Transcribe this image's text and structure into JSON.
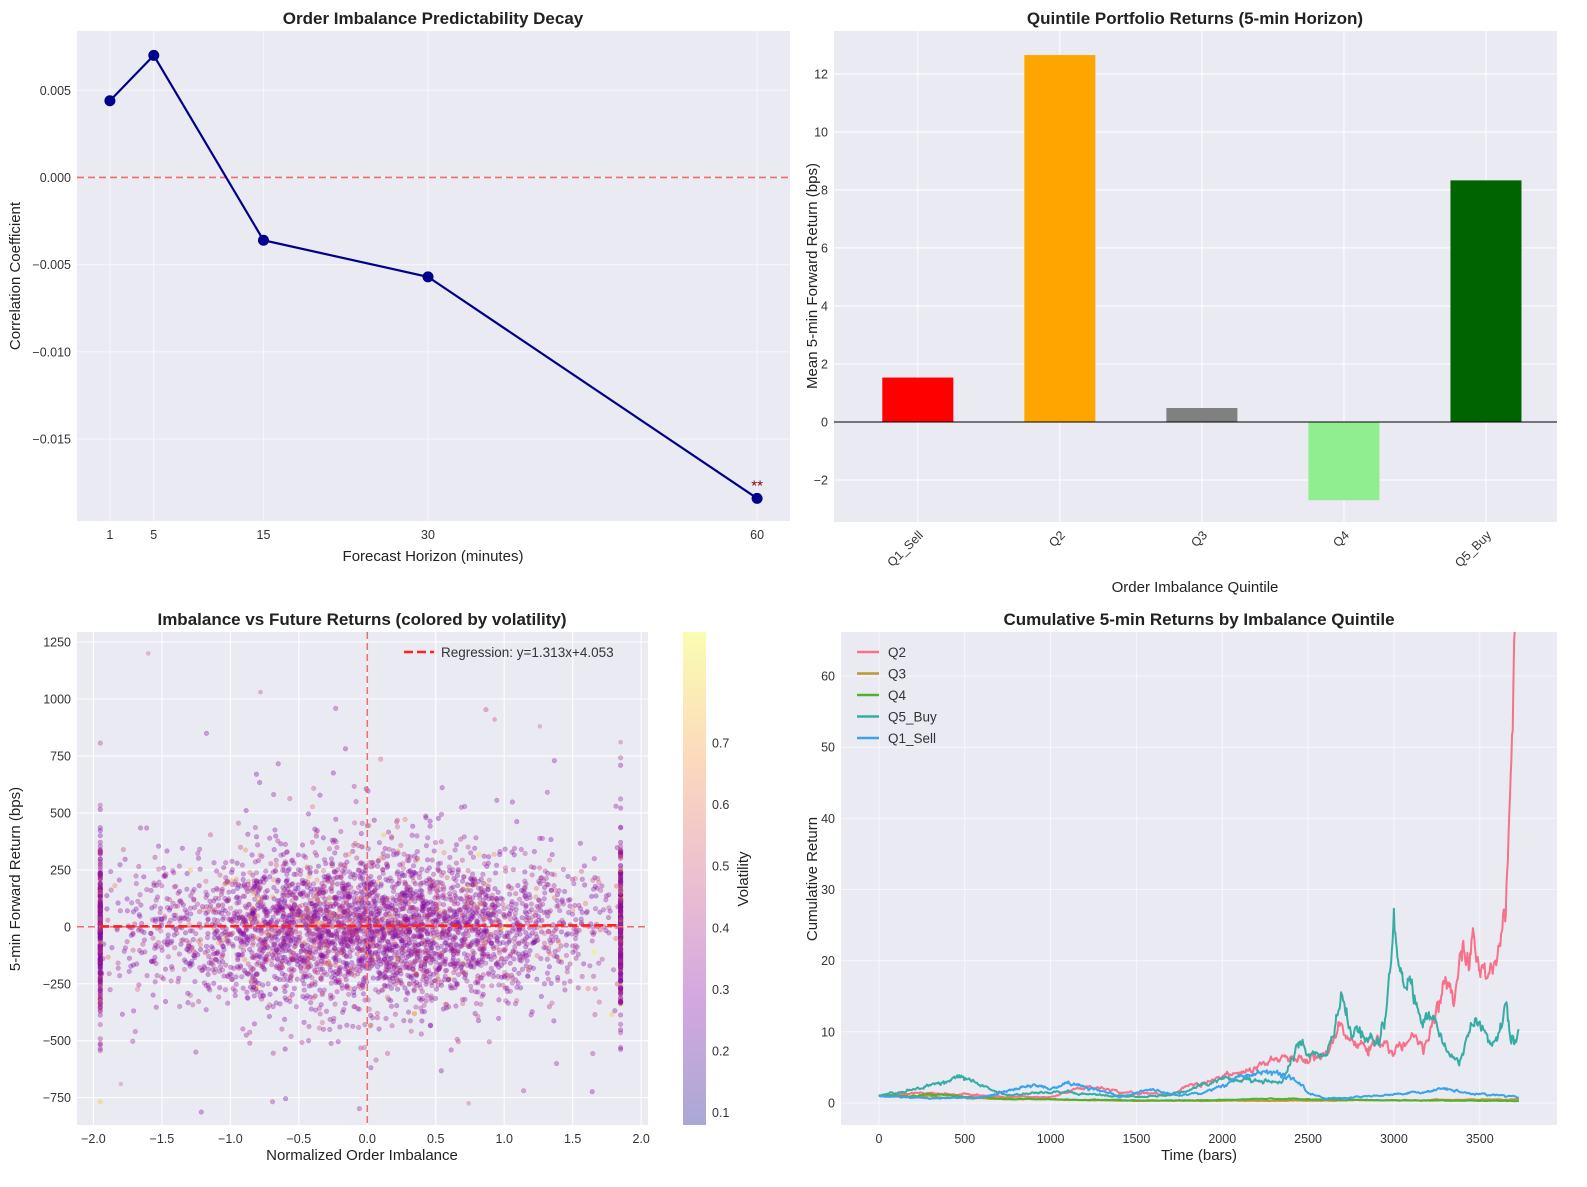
{
  "chart_data": [
    {
      "type": "line",
      "title": "Order Imbalance Predictability Decay",
      "xlabel": "Forecast Horizon (minutes)",
      "ylabel": "Correlation Coefficient",
      "x": [
        1,
        5,
        15,
        30,
        60
      ],
      "y": [
        0.0044,
        0.007,
        -0.0036,
        -0.0057,
        -0.0184
      ],
      "xlim": [
        -2,
        63
      ],
      "ylim": [
        -0.0197,
        0.0084
      ],
      "xticks": [
        1,
        5,
        15,
        30,
        60
      ],
      "xtick_labels": [
        "1",
        "5",
        "15",
        "30",
        "60"
      ],
      "yticks": [
        -0.015,
        -0.01,
        -0.005,
        0.0,
        0.005
      ],
      "ytick_labels": [
        "−0.015",
        "−0.010",
        "−0.005",
        "0.000",
        "0.005"
      ],
      "reference_line": {
        "y": 0,
        "style": "dashed",
        "color": "#f26b6b"
      },
      "annotation": {
        "x": 60,
        "y": -0.0184,
        "text": "**",
        "color": "#8b0000"
      },
      "line_color": "#00008b",
      "grid": true
    },
    {
      "type": "bar",
      "title": "Quintile Portfolio Returns (5-min Horizon)",
      "xlabel": "Order Imbalance Quintile",
      "ylabel": "Mean 5-min Forward Return (bps)",
      "categories": [
        "Q1_Sell",
        "Q2",
        "Q3",
        "Q4",
        "Q5_Buy"
      ],
      "values": [
        1.53,
        12.65,
        0.48,
        -2.7,
        8.33
      ],
      "colors": [
        "#ff0000",
        "#ffa500",
        "#808080",
        "#90ee90",
        "#006400"
      ],
      "ylim": [
        -3.45,
        13.48
      ],
      "yticks": [
        -2,
        0,
        2,
        4,
        6,
        8,
        10,
        12
      ],
      "ytick_labels": [
        "−2",
        "0",
        "2",
        "4",
        "6",
        "8",
        "10",
        "12"
      ],
      "grid": true
    },
    {
      "type": "scatter",
      "title": "Imbalance vs Future Returns (colored by volatility)",
      "xlabel": "Normalized Order Imbalance",
      "ylabel": "5-min Forward Return (bps)",
      "xlim": [
        -2.12,
        2.05
      ],
      "ylim": [
        -870,
        1294
      ],
      "xticks": [
        -2.0,
        -1.5,
        -1.0,
        -0.5,
        0.0,
        0.5,
        1.0,
        1.5,
        2.0
      ],
      "xtick_labels": [
        "−2.0",
        "−1.5",
        "−1.0",
        "−0.5",
        "0.0",
        "0.5",
        "1.0",
        "1.5",
        "2.0"
      ],
      "yticks": [
        -750,
        -500,
        -250,
        0,
        250,
        500,
        750,
        1000,
        1250
      ],
      "ytick_labels": [
        "−750",
        "−500",
        "−250",
        "0",
        "250",
        "500",
        "750",
        "1000",
        "1250"
      ],
      "point_cloud": {
        "n_points": 4500,
        "x_range": [
          -1.95,
          1.85
        ],
        "y_sd": 170,
        "volatility_center": 0.27
      },
      "notable_points": [
        {
          "x": -1.6,
          "y": 1200,
          "volatility": 0.5
        },
        {
          "x": -0.78,
          "y": 1030,
          "volatility": 0.45
        },
        {
          "x": 0.93,
          "y": 910,
          "volatility": 0.45
        },
        {
          "x": 1.26,
          "y": 880,
          "volatility": 0.5
        },
        {
          "x": 1.85,
          "y": 810,
          "volatility": 0.45
        },
        {
          "x": 0.74,
          "y": -775,
          "volatility": 0.5
        },
        {
          "x": -1.8,
          "y": -690,
          "volatility": 0.55
        }
      ],
      "regression": {
        "slope": 1.313,
        "intercept": 4.053,
        "x_range": [
          -1.95,
          1.85
        ],
        "color": "#ff2020"
      },
      "legend": {
        "label": "Regression: y=1.313x+4.053",
        "position": "upper-right"
      },
      "reference_lines": {
        "x": 0,
        "y": 0,
        "color": "#f26b6b"
      },
      "colorbar": {
        "label": "Volatility",
        "range": [
          0.08,
          0.88
        ],
        "ticks": [
          0.1,
          0.2,
          0.3,
          0.4,
          0.5,
          0.6,
          0.7
        ],
        "tick_labels": [
          "0.1",
          "0.2",
          "0.3",
          "0.4",
          "0.5",
          "0.6",
          "0.7"
        ],
        "colormap": [
          "#0d0887",
          "#7e03a8",
          "#cc4778",
          "#f89540",
          "#f0f921"
        ],
        "alpha": 0.35
      },
      "grid": true
    },
    {
      "type": "line",
      "title": "Cumulative 5-min Returns by Imbalance Quintile",
      "xlabel": "Time (bars)",
      "ylabel": "Cumulative Return",
      "xlim": [
        -221,
        3950
      ],
      "ylim": [
        -3.1,
        66.2
      ],
      "xticks": [
        0,
        500,
        1000,
        1500,
        2000,
        2500,
        3000,
        3500
      ],
      "xtick_labels": [
        "0",
        "500",
        "1000",
        "1500",
        "2000",
        "2500",
        "3000",
        "3500"
      ],
      "yticks": [
        0,
        10,
        20,
        30,
        40,
        50,
        60
      ],
      "ytick_labels": [
        "0",
        "10",
        "20",
        "30",
        "40",
        "50",
        "60"
      ],
      "legend_position": "upper-left",
      "series": [
        {
          "name": "Q2",
          "color": "#f77189",
          "anchors": [
            [
              0,
              1
            ],
            [
              200,
              1.4
            ],
            [
              500,
              1.3
            ],
            [
              700,
              0.9
            ],
            [
              1000,
              0.8
            ],
            [
              1200,
              2.2
            ],
            [
              1500,
              1.5
            ],
            [
              1700,
              1.2
            ],
            [
              1850,
              3
            ],
            [
              2000,
              3.5
            ],
            [
              2100,
              4.5
            ],
            [
              2300,
              5.5
            ],
            [
              2450,
              6.5
            ],
            [
              2600,
              6.5
            ],
            [
              2700,
              10.5
            ],
            [
              2800,
              8.5
            ],
            [
              3000,
              8
            ],
            [
              3100,
              7.5
            ],
            [
              3200,
              9
            ],
            [
              3250,
              15
            ],
            [
              3300,
              17
            ],
            [
              3350,
              15
            ],
            [
              3400,
              21
            ],
            [
              3450,
              22
            ],
            [
              3500,
              17
            ],
            [
              3550,
              19.5
            ],
            [
              3600,
              17
            ],
            [
              3650,
              25
            ],
            [
              3680,
              42
            ],
            [
              3700,
              55
            ],
            [
              3720,
              62
            ],
            [
              3730,
              61
            ]
          ]
        },
        {
          "name": "Q3",
          "color": "#bb9832",
          "anchors": [
            [
              0,
              1
            ],
            [
              300,
              0.9
            ],
            [
              500,
              0.7
            ],
            [
              1000,
              0.5
            ],
            [
              1500,
              0.3
            ],
            [
              2000,
              0.3
            ],
            [
              2500,
              0.3
            ],
            [
              3000,
              0.4
            ],
            [
              3730,
              0.5
            ]
          ]
        },
        {
          "name": "Q4",
          "color": "#50b131",
          "anchors": [
            [
              0,
              1
            ],
            [
              400,
              1.1
            ],
            [
              700,
              0.6
            ],
            [
              1000,
              0.5
            ],
            [
              1500,
              0.35
            ],
            [
              2000,
              0.4
            ],
            [
              2300,
              0.6
            ],
            [
              3000,
              0.35
            ],
            [
              3730,
              0.3
            ]
          ]
        },
        {
          "name": "Q5_Buy",
          "color": "#36ada4",
          "anchors": [
            [
              0,
              1
            ],
            [
              100,
              1.6
            ],
            [
              300,
              2.5
            ],
            [
              450,
              4
            ],
            [
              550,
              3.5
            ],
            [
              650,
              2
            ],
            [
              750,
              1
            ],
            [
              1000,
              1.6
            ],
            [
              1200,
              1.3
            ],
            [
              1500,
              0.9
            ],
            [
              1700,
              1.2
            ],
            [
              1900,
              2.6
            ],
            [
              2000,
              3.4
            ],
            [
              2200,
              3.6
            ],
            [
              2350,
              3
            ],
            [
              2450,
              8.5
            ],
            [
              2500,
              7
            ],
            [
              2600,
              6.3
            ],
            [
              2700,
              14
            ],
            [
              2750,
              10
            ],
            [
              2800,
              10
            ],
            [
              2900,
              9
            ],
            [
              2950,
              13
            ],
            [
              3000,
              23
            ],
            [
              3050,
              18
            ],
            [
              3100,
              16
            ],
            [
              3200,
              12.5
            ],
            [
              3300,
              8
            ],
            [
              3380,
              6
            ],
            [
              3450,
              11.5
            ],
            [
              3550,
              9
            ],
            [
              3600,
              8
            ],
            [
              3650,
              15.5
            ],
            [
              3680,
              9.5
            ],
            [
              3730,
              11
            ]
          ]
        },
        {
          "name": "Q1_Sell",
          "color": "#3ba3ec",
          "anchors": [
            [
              0,
              1
            ],
            [
              300,
              0.6
            ],
            [
              600,
              0.8
            ],
            [
              900,
              2.7
            ],
            [
              1000,
              2
            ],
            [
              1100,
              3
            ],
            [
              1200,
              2.3
            ],
            [
              1400,
              1
            ],
            [
              1600,
              1.8
            ],
            [
              1750,
              1
            ],
            [
              1900,
              1.5
            ],
            [
              2000,
              2.5
            ],
            [
              2100,
              3.8
            ],
            [
              2300,
              4.4
            ],
            [
              2400,
              3.5
            ],
            [
              2500,
              1.5
            ],
            [
              2600,
              0.6
            ],
            [
              2800,
              0.9
            ],
            [
              3000,
              1.2
            ],
            [
              3300,
              2.1
            ],
            [
              3400,
              1.4
            ],
            [
              3600,
              1.1
            ],
            [
              3730,
              0.8
            ]
          ]
        }
      ],
      "grid": true
    }
  ]
}
